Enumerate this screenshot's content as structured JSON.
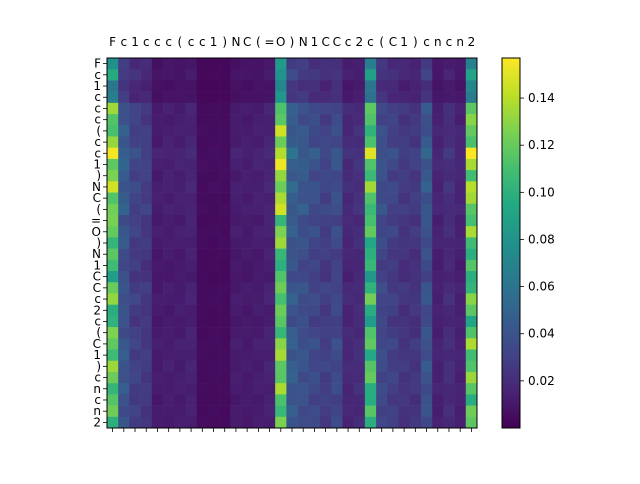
{
  "chart_data": {
    "type": "heatmap",
    "title": "",
    "xlabel": "",
    "ylabel": "",
    "x_tokens": [
      "F",
      "c",
      "1",
      "c",
      "c",
      "c",
      "(",
      "c",
      "c",
      "1",
      ")",
      "N",
      "C",
      "(",
      "=",
      "O",
      ")",
      "N",
      "1",
      "C",
      "C",
      "c",
      "2",
      "c",
      "(",
      "C",
      "1",
      ")",
      "c",
      "n",
      "c",
      "n",
      "2"
    ],
    "y_tokens": [
      "F",
      "c",
      "1",
      "c",
      "c",
      "c",
      "(",
      "c",
      "c",
      "1",
      ")",
      "N",
      "C",
      "(",
      "=",
      "O",
      ")",
      "N",
      "1",
      "C",
      "C",
      "c",
      "2",
      "c",
      "(",
      "C",
      "1",
      ")",
      "c",
      "n",
      "c",
      "n",
      "2"
    ],
    "colormap": "viridis",
    "vmin": 0.0,
    "vmax": 0.157,
    "colorbar_ticks": [
      0.02,
      0.04,
      0.06,
      0.08,
      0.1,
      0.12,
      0.14
    ],
    "colorbar_tick_labels": [
      "0.02",
      "0.04",
      "0.06",
      "0.08",
      "0.10",
      "0.12",
      "0.14"
    ],
    "column_base_values": [
      0.12,
      0.042,
      0.03,
      0.027,
      0.012,
      0.013,
      0.013,
      0.015,
      0.005,
      0.005,
      0.005,
      0.012,
      0.012,
      0.013,
      0.015,
      0.125,
      0.045,
      0.04,
      0.035,
      0.03,
      0.035,
      0.018,
      0.02,
      0.11,
      0.035,
      0.03,
      0.025,
      0.025,
      0.04,
      0.015,
      0.02,
      0.015,
      0.12
    ],
    "row_scale_values": [
      0.65,
      0.72,
      0.55,
      0.6,
      1.0,
      0.96,
      1.04,
      1.02,
      1.22,
      1.11,
      1.03,
      1.1,
      1.04,
      1.08,
      0.93,
      1.02,
      0.96,
      0.89,
      0.86,
      0.82,
      0.97,
      1.0,
      0.91,
      0.87,
      0.94,
      1.03,
      0.98,
      1.01,
      0.99,
      0.98,
      0.91,
      0.94,
      0.93
    ]
  }
}
